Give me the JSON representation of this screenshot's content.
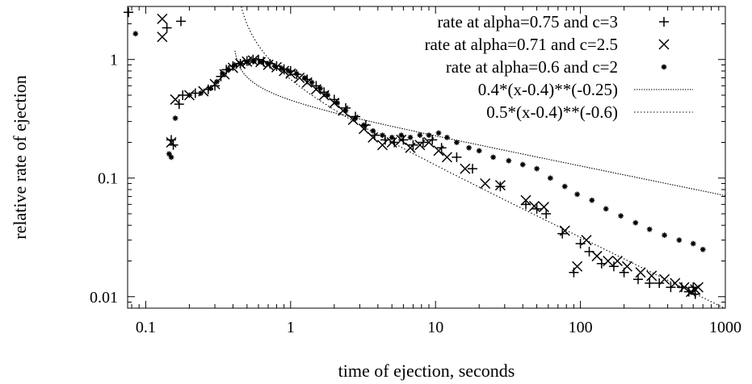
{
  "chart_data": {
    "type": "scatter",
    "xlabel": "time of ejection, seconds",
    "ylabel": "relative rate of ejection",
    "xscale": "log",
    "yscale": "log",
    "xlim": [
      0.075,
      1000
    ],
    "ylim": [
      0.008,
      2.8
    ],
    "xticks": [
      {
        "value": 0.1,
        "label": "0.1"
      },
      {
        "value": 1,
        "label": "1"
      },
      {
        "value": 10,
        "label": "10"
      },
      {
        "value": 100,
        "label": "100"
      },
      {
        "value": 1000,
        "label": "1000"
      }
    ],
    "yticks": [
      {
        "value": 0.01,
        "label": "0.01"
      },
      {
        "value": 0.1,
        "label": "0.1"
      },
      {
        "value": 1,
        "label": "1"
      }
    ],
    "legend_position": "top-right",
    "grid": false,
    "series": [
      {
        "name": "rate at alpha=0.75 and c=3",
        "marker": "plus",
        "x": [
          0.076,
          0.14,
          0.175,
          0.15,
          0.155,
          0.17,
          0.18,
          0.22,
          0.27,
          0.3,
          0.33,
          0.36,
          0.4,
          0.45,
          0.5,
          0.55,
          0.6,
          0.65,
          0.72,
          0.8,
          0.9,
          1.0,
          1.1,
          1.3,
          1.5,
          1.7,
          2.0,
          2.4,
          2.8,
          3.3,
          3.8,
          4.5,
          5.2,
          6.0,
          7.0,
          8.2,
          9.5,
          11,
          14,
          18,
          28,
          42,
          50,
          58,
          75,
          90,
          100,
          115,
          140,
          170,
          200,
          250,
          300,
          350,
          420,
          500,
          560,
          600,
          620
        ],
        "y": [
          2.5,
          1.85,
          2.1,
          0.21,
          0.19,
          0.42,
          0.5,
          0.52,
          0.56,
          0.6,
          0.72,
          0.82,
          0.88,
          0.92,
          0.97,
          1.0,
          1.0,
          0.96,
          0.92,
          0.88,
          0.83,
          0.8,
          0.75,
          0.68,
          0.6,
          0.53,
          0.46,
          0.39,
          0.33,
          0.28,
          0.23,
          0.21,
          0.2,
          0.21,
          0.19,
          0.2,
          0.21,
          0.18,
          0.15,
          0.12,
          0.085,
          0.06,
          0.055,
          0.05,
          0.034,
          0.016,
          0.028,
          0.024,
          0.019,
          0.018,
          0.016,
          0.014,
          0.013,
          0.013,
          0.012,
          0.012,
          0.011,
          0.012,
          0.0105
        ]
      },
      {
        "name": "rate at alpha=0.71 and c=2.5",
        "marker": "cross",
        "x": [
          0.13,
          0.13,
          0.15,
          0.16,
          0.2,
          0.25,
          0.3,
          0.35,
          0.4,
          0.45,
          0.5,
          0.55,
          0.62,
          0.7,
          0.8,
          0.9,
          1.0,
          1.15,
          1.3,
          1.5,
          1.7,
          2.0,
          2.3,
          2.7,
          3.2,
          3.7,
          4.3,
          5.0,
          5.8,
          6.7,
          7.8,
          9.0,
          10.5,
          12,
          16,
          22,
          28,
          42,
          48,
          56,
          78,
          95,
          110,
          130,
          155,
          180,
          210,
          260,
          310,
          380,
          450,
          520,
          580,
          620,
          650
        ],
        "y": [
          1.55,
          2.2,
          0.2,
          0.46,
          0.5,
          0.54,
          0.62,
          0.75,
          0.85,
          0.92,
          0.96,
          0.98,
          0.95,
          0.9,
          0.86,
          0.8,
          0.76,
          0.7,
          0.64,
          0.56,
          0.5,
          0.43,
          0.37,
          0.31,
          0.26,
          0.22,
          0.19,
          0.2,
          0.21,
          0.18,
          0.19,
          0.2,
          0.17,
          0.15,
          0.12,
          0.09,
          0.087,
          0.065,
          0.058,
          0.057,
          0.036,
          0.018,
          0.03,
          0.022,
          0.02,
          0.02,
          0.018,
          0.016,
          0.015,
          0.014,
          0.013,
          0.012,
          0.011,
          0.0115,
          0.012
        ]
      },
      {
        "name": "rate at alpha=0.6 and c=2",
        "marker": "star",
        "x": [
          0.085,
          0.145,
          0.15,
          0.16,
          0.2,
          0.24,
          0.28,
          0.31,
          0.34,
          0.37,
          0.41,
          0.45,
          0.5,
          0.56,
          0.63,
          0.7,
          0.78,
          0.87,
          0.97,
          1.1,
          1.25,
          1.4,
          1.6,
          1.8,
          2.1,
          2.4,
          2.8,
          3.2,
          3.7,
          4.3,
          5.0,
          5.8,
          6.7,
          7.8,
          9.0,
          10.5,
          12,
          14,
          17,
          20,
          25,
          32,
          40,
          50,
          62,
          78,
          95,
          120,
          150,
          190,
          240,
          300,
          380,
          480,
          600,
          700
        ],
        "y": [
          1.65,
          0.16,
          0.15,
          0.32,
          0.5,
          0.52,
          0.57,
          0.65,
          0.76,
          0.83,
          0.9,
          0.93,
          0.95,
          0.97,
          0.95,
          0.92,
          0.88,
          0.84,
          0.8,
          0.76,
          0.7,
          0.64,
          0.57,
          0.5,
          0.43,
          0.37,
          0.32,
          0.28,
          0.25,
          0.23,
          0.22,
          0.23,
          0.22,
          0.23,
          0.23,
          0.24,
          0.22,
          0.2,
          0.18,
          0.17,
          0.15,
          0.14,
          0.13,
          0.12,
          0.1,
          0.085,
          0.073,
          0.065,
          0.055,
          0.048,
          0.042,
          0.037,
          0.033,
          0.03,
          0.028,
          0.025
        ]
      },
      {
        "name": "0.4*(x-0.4)**(-0.25)",
        "type": "line",
        "dash": "dotted-fine",
        "expr": {
          "a": 0.4,
          "b": 0.4,
          "p": -0.25
        },
        "x_range": [
          0.413,
          1000
        ]
      },
      {
        "name": "0.5*(x-0.4)**(-0.6)",
        "type": "line",
        "dash": "dotted",
        "expr": {
          "a": 0.5,
          "b": 0.4,
          "p": -0.6
        },
        "x_range": [
          0.425,
          1000
        ]
      }
    ]
  }
}
